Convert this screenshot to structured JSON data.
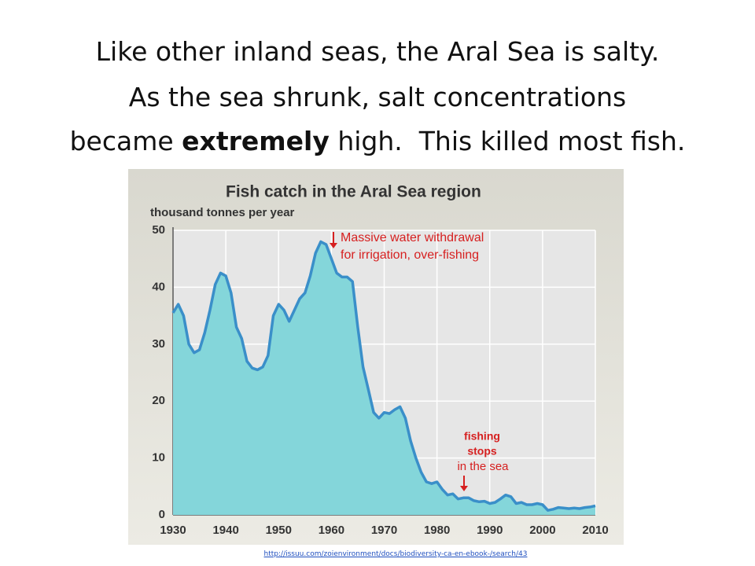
{
  "slide": {
    "title_line1": "Like other inland seas, the Aral Sea is salty.",
    "title_line2": "As the sea shrunk, salt concentrations",
    "title_line3": [
      "became ",
      "extremely",
      " high.  This killed most fish."
    ],
    "source_link": "http://issuu.com/zoienvironment/docs/biodiversity-ca-en-ebook-/search/43"
  },
  "chart_data": {
    "type": "area",
    "title": "Fish catch in the Aral Sea region",
    "y_label": "thousand tonnes per year",
    "x": [
      1930,
      1931,
      1932,
      1933,
      1934,
      1935,
      1936,
      1937,
      1938,
      1939,
      1940,
      1941,
      1942,
      1943,
      1944,
      1945,
      1946,
      1947,
      1948,
      1949,
      1950,
      1951,
      1952,
      1953,
      1954,
      1955,
      1956,
      1957,
      1958,
      1959,
      1960,
      1961,
      1962,
      1963,
      1964,
      1965,
      1966,
      1967,
      1968,
      1969,
      1970,
      1971,
      1972,
      1973,
      1974,
      1975,
      1976,
      1977,
      1978,
      1979,
      1980,
      1981,
      1982,
      1983,
      1984,
      1985,
      1986,
      1987,
      1988,
      1989,
      1990,
      1991,
      1992,
      1993,
      1994,
      1995,
      1996,
      1997,
      1998,
      1999,
      2000,
      2001,
      2002,
      2003,
      2004,
      2005,
      2006,
      2007,
      2008,
      2009,
      2010
    ],
    "values": [
      35.5,
      37,
      35,
      30,
      28.5,
      29,
      32,
      36,
      40.5,
      42.5,
      42,
      39,
      33,
      31,
      27,
      25.8,
      25.5,
      26,
      28,
      35,
      37,
      36,
      34,
      36,
      38,
      39,
      42,
      46,
      48,
      47.5,
      45,
      42.5,
      41.8,
      41.8,
      41,
      33,
      26,
      22,
      18,
      17,
      18,
      17.8,
      18.5,
      19,
      17,
      13,
      10,
      7.5,
      5.8,
      5.5,
      5.8,
      4.5,
      3.5,
      3.7,
      2.8,
      3,
      3,
      2.5,
      2.3,
      2.4,
      2,
      2.2,
      2.8,
      3.5,
      3.2,
      2,
      2.2,
      1.8,
      1.8,
      2,
      1.8,
      0.8,
      1,
      1.3,
      1.2,
      1.1,
      1.2,
      1.1,
      1.3,
      1.4,
      1.6
    ],
    "color": "#3a8fc9",
    "fill_color": "#84d6da",
    "xlim": [
      1930,
      2010
    ],
    "xticks": [
      1930,
      1940,
      1950,
      1960,
      1970,
      1980,
      1990,
      2000,
      2010
    ],
    "ylim": [
      0,
      50
    ],
    "yticks": [
      0,
      10,
      20,
      30,
      40,
      50
    ],
    "grid": true,
    "annotations": [
      {
        "lines": [
          "Massive water withdrawal",
          "for irrigation, over-fishing"
        ]
      },
      {
        "lines": [
          "fishing",
          "stops"
        ],
        "bold": true
      },
      {
        "lines": [
          "in the sea"
        ]
      }
    ]
  }
}
